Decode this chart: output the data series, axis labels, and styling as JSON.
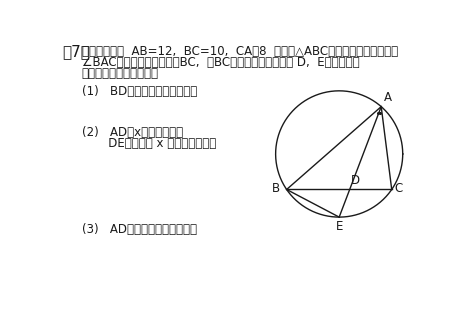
{
  "title_bracket": "[  7  ]",
  "line1": "図のように，  AB=12,  BC=10,  CA＝8  である△ABCと外接円があります。",
  "line2": "∠BACの角の２等分線と辺BC,  弧BCとの交点をそれぞれ D,  Eとします。",
  "line3": "次の問いに答えなさい。",
  "q1": "(1)   BDの長さを求めなさい。",
  "q2a": "(2)   AD＝xとおくとき，",
  "q2b": "       DEの長さを x で表しなさい。",
  "q3": "(3)   ADの長さを求めなさい。",
  "AB": 12,
  "BC": 10,
  "CA": 8,
  "bg_color": "#ffffff",
  "text_color": "#1a1a1a",
  "line_color": "#1a1a1a",
  "lw": 1.0,
  "fs_body": 8.5,
  "fs_label": 8.5
}
